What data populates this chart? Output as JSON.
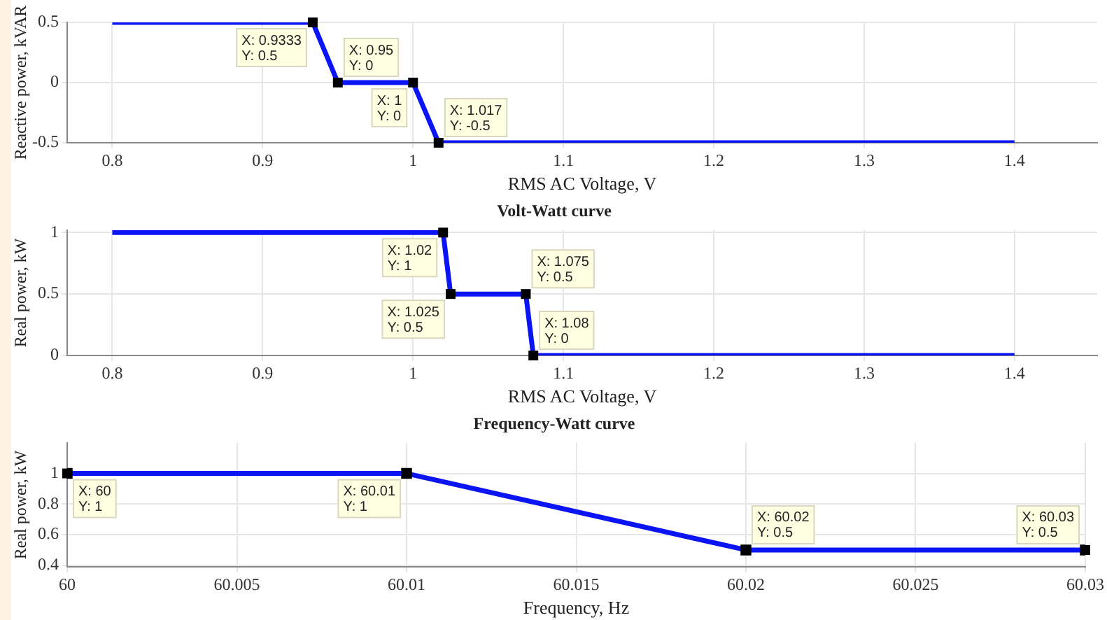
{
  "chart_data": [
    {
      "type": "line",
      "xlabel": "RMS AC Voltage, V",
      "ylabel": "Reactive power, kVAR",
      "x": [
        0.8,
        0.9333,
        0.95,
        1,
        1.017,
        1.4
      ],
      "series": [
        {
          "color": "#0a14f5",
          "values": [
            0.5,
            0.5,
            0,
            0,
            -0.5,
            -0.5
          ]
        }
      ],
      "xlim": [
        0.77,
        1.455
      ],
      "xticks": [
        0.8,
        0.9,
        1,
        1.1,
        1.2,
        1.3,
        1.4
      ],
      "ylim": [
        -0.5,
        0.5
      ],
      "yticks": [
        -0.5,
        0,
        0.5
      ],
      "grid": true,
      "legend": false,
      "line_style": "solid",
      "annotations": [
        {
          "text": "X: 0.9333\nY: 0.5",
          "x": 0.9333,
          "y": 0.5
        },
        {
          "text": "X: 0.95\nY: 0",
          "x": 0.95,
          "y": 0
        },
        {
          "text": "X: 1\nY: 0",
          "x": 1,
          "y": 0
        },
        {
          "text": "X: 1.017\nY: -0.5",
          "x": 1.017,
          "y": -0.5
        }
      ]
    },
    {
      "type": "line",
      "title": "Volt-Watt curve",
      "xlabel": "RMS AC Voltage, V",
      "ylabel": "Real power, kW",
      "x": [
        0.8,
        1.02,
        1.025,
        1.075,
        1.08,
        1.4
      ],
      "series": [
        {
          "color": "#0a14f5",
          "values": [
            1,
            1,
            0.5,
            0.5,
            0,
            0
          ]
        }
      ],
      "xlim": [
        0.77,
        1.455
      ],
      "xticks": [
        0.8,
        0.9,
        1,
        1.1,
        1.2,
        1.3,
        1.4
      ],
      "ylim": [
        0,
        1.02
      ],
      "yticks": [
        0,
        0.5,
        1
      ],
      "grid": true,
      "legend": false,
      "line_style": "solid",
      "annotations": [
        {
          "text": "X: 1.02\nY: 1",
          "x": 1.02,
          "y": 1
        },
        {
          "text": "X: 1.025\nY: 0.5",
          "x": 1.025,
          "y": 0.5
        },
        {
          "text": "X: 1.075\nY: 0.5",
          "x": 1.075,
          "y": 0.5
        },
        {
          "text": "X: 1.08\nY: 0",
          "x": 1.08,
          "y": 0
        }
      ]
    },
    {
      "type": "line",
      "title": "Frequency-Watt curve",
      "xlabel": "Frequency, Hz",
      "ylabel": "Real power, kW",
      "x": [
        60,
        60.01,
        60.02,
        60.03
      ],
      "series": [
        {
          "color": "#0a14f5",
          "values": [
            1,
            1,
            0.5,
            0.5
          ]
        }
      ],
      "xlim": [
        60,
        60.03
      ],
      "xticks": [
        60,
        60.005,
        60.01,
        60.015,
        60.02,
        60.025,
        60.03
      ],
      "ylim": [
        0.39,
        1.2
      ],
      "yticks": [
        0.4,
        0.6,
        0.8,
        1
      ],
      "grid": true,
      "legend": false,
      "marker": "square",
      "line_style": "solid",
      "annotations": [
        {
          "text": "X: 60\nY: 1",
          "x": 60,
          "y": 1
        },
        {
          "text": "X: 60.01\nY: 1",
          "x": 60.01,
          "y": 1
        },
        {
          "text": "X: 60.02\nY: 0.5",
          "x": 60.02,
          "y": 0.5
        },
        {
          "text": "X: 60.03\nY: 0.5",
          "x": 60.03,
          "y": 0.5
        }
      ]
    }
  ]
}
